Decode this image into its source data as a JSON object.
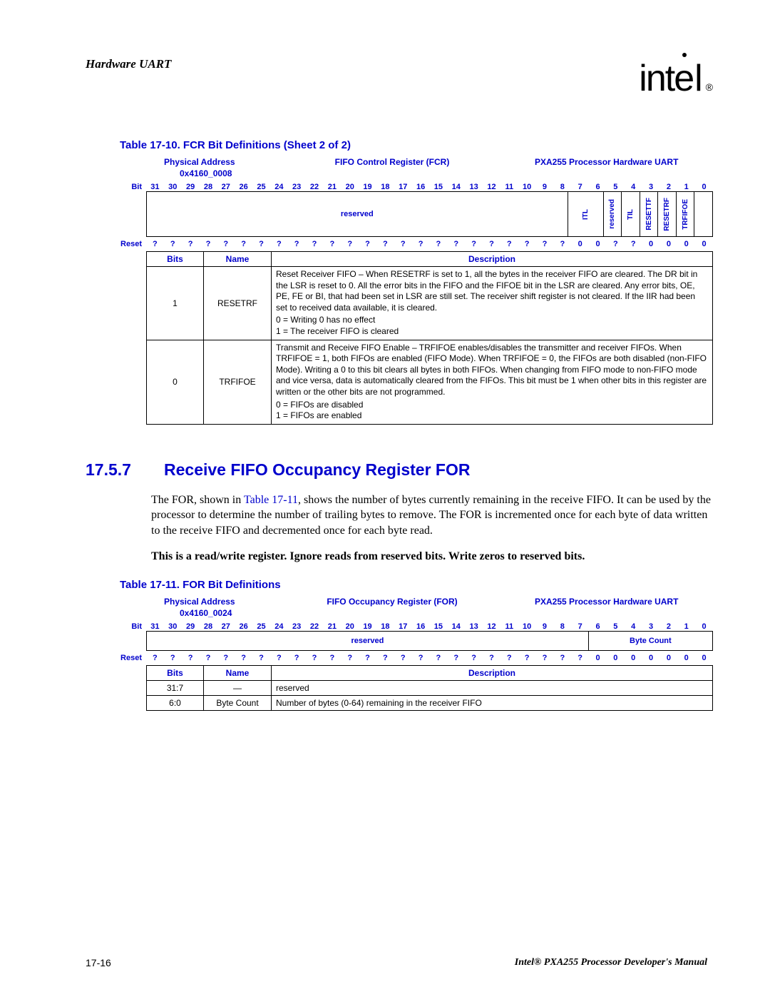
{
  "header": {
    "title": "Hardware UART",
    "logo_reg": "®"
  },
  "table1": {
    "title": "Table 17-10. FCR Bit Definitions (Sheet 2 of 2)",
    "phys_label": "Physical Address",
    "phys_addr": "0x4160_0008",
    "reg_name": "FIFO Control Register (FCR)",
    "proc": "PXA255 Processor Hardware UART",
    "bit_label": "Bit",
    "reset_label": "Reset",
    "bit_numbers": [
      "31",
      "30",
      "29",
      "28",
      "27",
      "26",
      "25",
      "24",
      "23",
      "22",
      "21",
      "20",
      "19",
      "18",
      "17",
      "16",
      "15",
      "14",
      "13",
      "12",
      "11",
      "10",
      "9",
      "8",
      "7",
      "6",
      "5",
      "4",
      "3",
      "2",
      "1",
      "0"
    ],
    "fields": {
      "reserved": "reserved",
      "itl": "ITL",
      "reserved2": "reserved",
      "til": "TIL",
      "resettf": "RESETTF",
      "resetrf": "RESETRF",
      "trfifoe": "TRFIFOE"
    },
    "reset_values": [
      "?",
      "?",
      "?",
      "?",
      "?",
      "?",
      "?",
      "?",
      "?",
      "?",
      "?",
      "?",
      "?",
      "?",
      "?",
      "?",
      "?",
      "?",
      "?",
      "?",
      "?",
      "?",
      "?",
      "?",
      "0",
      "0",
      "?",
      "?",
      "0",
      "0",
      "0",
      "0"
    ],
    "hdr_bits": "Bits",
    "hdr_name": "Name",
    "hdr_desc": "Description",
    "rows": [
      {
        "bits": "1",
        "name": "RESETRF",
        "desc_main": "Reset Receiver FIFO – When RESETRF is set to 1, all the bytes in the receiver FIFO are cleared. The DR bit in the LSR is reset to 0. All the error bits in the FIFO and the FIFOE bit in the LSR are cleared. Any error bits, OE, PE, FE or BI, that had been set in LSR are still set. The receiver shift register is not cleared. If the IIR had been set to received data available, it is cleared.",
        "desc_0": "0 =  Writing 0 has no effect",
        "desc_1": "1 =  The receiver FIFO is cleared"
      },
      {
        "bits": "0",
        "name": "TRFIFOE",
        "desc_main": "Transmit and Receive FIFO Enable – TRFIFOE enables/disables the transmitter and receiver FIFOs. When TRFIFOE = 1, both FIFOs are enabled (FIFO Mode). When TRFIFOE = 0, the FIFOs are both disabled (non-FIFO Mode). Writing a 0 to this bit clears all bytes in both FIFOs. When changing from FIFO mode to non-FIFO mode and vice versa, data is automatically cleared from the FIFOs. This bit must be 1 when other bits in this register are written or the other bits are not programmed.",
        "desc_0": "0 =  FIFOs are disabled",
        "desc_1": "1 =  FIFOs are enabled"
      }
    ]
  },
  "section": {
    "num": "17.5.7",
    "title": "Receive FIFO Occupancy Register FOR",
    "para1a": "The FOR, shown in ",
    "para1_link": "Table 17-11",
    "para1b": ", shows the number of bytes currently remaining in the receive FIFO. It can be used by the processor to determine the number of trailing bytes to remove. The FOR is incremented once for each byte of data written to the receive FIFO and decremented once for each byte read.",
    "para2": "This is a read/write register. Ignore reads from reserved bits. Write zeros to reserved bits."
  },
  "table2": {
    "title": "Table 17-11. FOR Bit Definitions",
    "phys_label": "Physical Address",
    "phys_addr": "0x4160_0024",
    "reg_name": "FIFO Occupancy Register (FOR)",
    "proc": "PXA255 Processor Hardware UART",
    "bit_label": "Bit",
    "reset_label": "Reset",
    "bit_numbers": [
      "31",
      "30",
      "29",
      "28",
      "27",
      "26",
      "25",
      "24",
      "23",
      "22",
      "21",
      "20",
      "19",
      "18",
      "17",
      "16",
      "15",
      "14",
      "13",
      "12",
      "11",
      "10",
      "9",
      "8",
      "7",
      "6",
      "5",
      "4",
      "3",
      "2",
      "1",
      "0"
    ],
    "fields": {
      "reserved": "reserved",
      "bytecount": "Byte Count"
    },
    "reset_values": [
      "?",
      "?",
      "?",
      "?",
      "?",
      "?",
      "?",
      "?",
      "?",
      "?",
      "?",
      "?",
      "?",
      "?",
      "?",
      "?",
      "?",
      "?",
      "?",
      "?",
      "?",
      "?",
      "?",
      "?",
      "?",
      "0",
      "0",
      "0",
      "0",
      "0",
      "0",
      "0"
    ],
    "hdr_bits": "Bits",
    "hdr_name": "Name",
    "hdr_desc": "Description",
    "rows": [
      {
        "bits": "31:7",
        "name": "—",
        "desc": "reserved"
      },
      {
        "bits": "6:0",
        "name": "Byte Count",
        "desc": "Number of bytes (0-64) remaining in the receiver FIFO"
      }
    ]
  },
  "footer": {
    "page": "17-16",
    "title": "Intel® PXA255 Processor Developer's Manual"
  }
}
